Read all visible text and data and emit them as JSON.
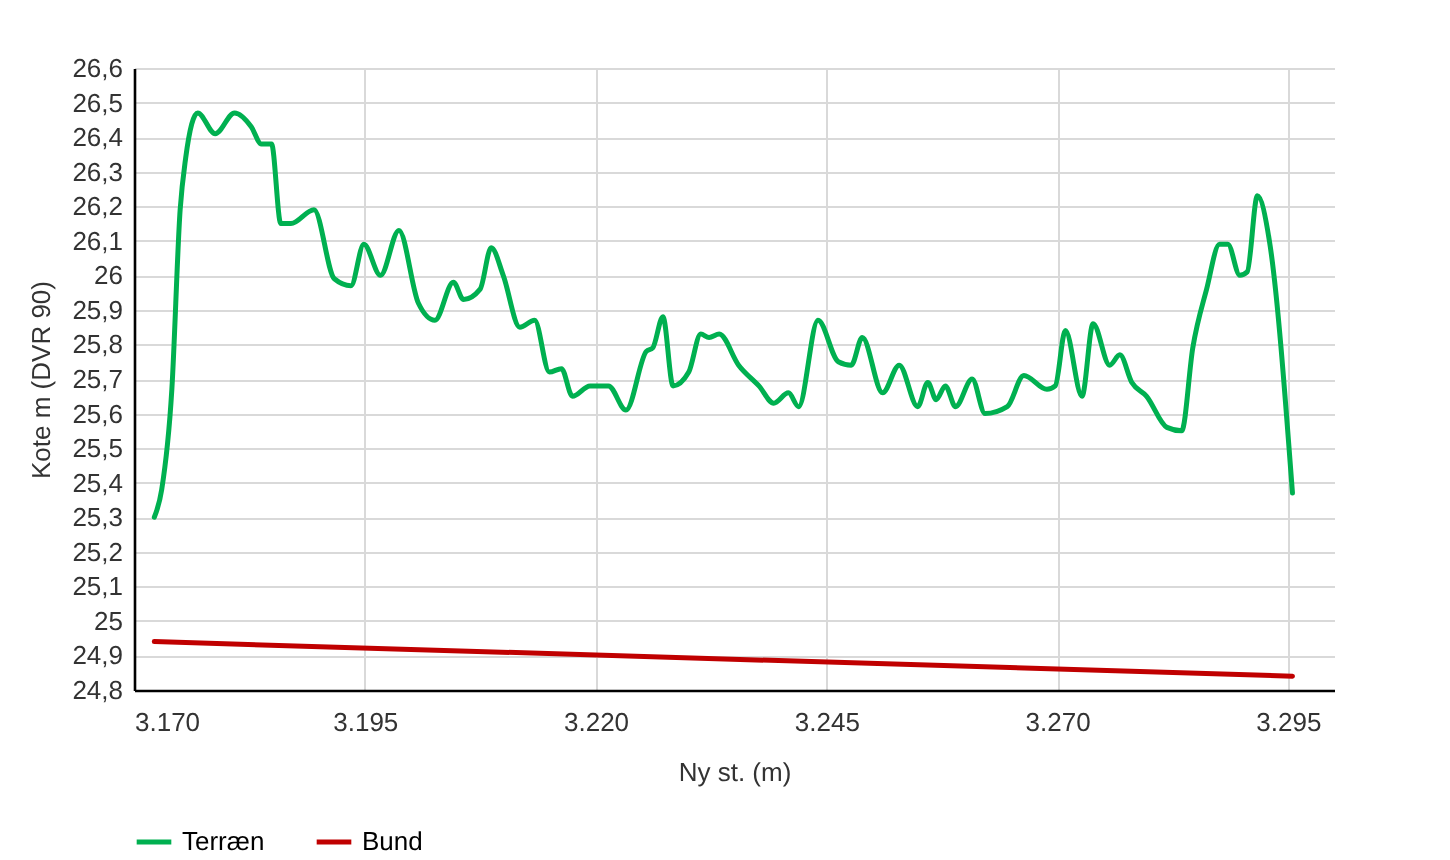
{
  "chart_data": {
    "type": "line",
    "xlabel": "Ny st. (m)",
    "ylabel": "Kote m (DVR 90)",
    "xlim": [
      3170,
      3300
    ],
    "xticks": [
      {
        "value": 3170,
        "label": "3.170"
      },
      {
        "value": 3195,
        "label": "3.195"
      },
      {
        "value": 3220,
        "label": "3.220"
      },
      {
        "value": 3245,
        "label": "3.245"
      },
      {
        "value": 3270,
        "label": "3.270"
      },
      {
        "value": 3295,
        "label": "3.295"
      }
    ],
    "ylim": [
      24.8,
      26.6
    ],
    "yticks": [
      {
        "value": 24.8,
        "label": "24,8"
      },
      {
        "value": 24.9,
        "label": "24,9"
      },
      {
        "value": 25,
        "label": "25"
      },
      {
        "value": 25.1,
        "label": "25,1"
      },
      {
        "value": 25.2,
        "label": "25,2"
      },
      {
        "value": 25.3,
        "label": "25,3"
      },
      {
        "value": 25.4,
        "label": "25,4"
      },
      {
        "value": 25.5,
        "label": "25,5"
      },
      {
        "value": 25.6,
        "label": "25,6"
      },
      {
        "value": 25.7,
        "label": "25,7"
      },
      {
        "value": 25.8,
        "label": "25,8"
      },
      {
        "value": 25.9,
        "label": "25,9"
      },
      {
        "value": 26,
        "label": "26"
      },
      {
        "value": 26.1,
        "label": "26,1"
      },
      {
        "value": 26.2,
        "label": "26,2"
      },
      {
        "value": 26.3,
        "label": "26,3"
      },
      {
        "value": 26.4,
        "label": "26,4"
      },
      {
        "value": 26.5,
        "label": "26,5"
      },
      {
        "value": 26.6,
        "label": "26,6"
      }
    ],
    "grid": true,
    "legend": "bottom",
    "series": [
      {
        "name": "Terræn",
        "color": "#00b050",
        "x": [
          3172.2,
          3173,
          3174.1,
          3175,
          3175.6,
          3176.9,
          3178.8,
          3180.9,
          3182.7,
          3183.8,
          3184.9,
          3185.9,
          3187,
          3189.5,
          3191.7,
          3193.5,
          3194.9,
          3196.7,
          3198.7,
          3200.8,
          3202.6,
          3204.6,
          3205.7,
          3207.5,
          3208.7,
          3210,
          3211.8,
          3213.4,
          3215,
          3216.3,
          3217.5,
          3219.4,
          3220.4,
          3221.4,
          3223.3,
          3225.5,
          3226.2,
          3227.3,
          3228.4,
          3230.1,
          3231.4,
          3232.3,
          3233.4,
          3235.5,
          3237.7,
          3239.3,
          3240.9,
          3242,
          3244.1,
          3246.3,
          3247.7,
          3248.9,
          3251.1,
          3252.9,
          3254.9,
          3256,
          3256.9,
          3257.9,
          3259,
          3260.8,
          3262.2,
          3264.6,
          3266.4,
          3268.9,
          3269.8,
          3270.9,
          3272.7,
          3273.9,
          3275.7,
          3276.8,
          3278.1,
          3279.7,
          3281.9,
          3283.5,
          3284.7,
          3286.2,
          3287.6,
          3288.5,
          3289.8,
          3290.6,
          3291.7,
          3293,
          3295.5
        ],
        "values": [
          25.3,
          25.38,
          25.67,
          26.19,
          26.34,
          26.47,
          26.41,
          26.47,
          26.43,
          26.38,
          26.38,
          26.15,
          26.15,
          26.19,
          25.99,
          25.97,
          26.09,
          26,
          26.13,
          25.92,
          25.87,
          25.98,
          25.93,
          25.96,
          26.08,
          26,
          25.85,
          25.87,
          25.72,
          25.73,
          25.65,
          25.68,
          25.68,
          25.68,
          25.61,
          25.78,
          25.79,
          25.88,
          25.68,
          25.72,
          25.83,
          25.82,
          25.83,
          25.74,
          25.68,
          25.63,
          25.66,
          25.62,
          25.87,
          25.75,
          25.74,
          25.82,
          25.66,
          25.74,
          25.62,
          25.69,
          25.64,
          25.68,
          25.62,
          25.7,
          25.6,
          25.62,
          25.71,
          25.67,
          25.68,
          25.84,
          25.65,
          25.86,
          25.74,
          25.77,
          25.69,
          25.65,
          25.56,
          25.55,
          25.79,
          25.96,
          26.09,
          26.09,
          26,
          26.01,
          26.23,
          26.1,
          25.37
        ]
      },
      {
        "name": "Bund",
        "color": "#c00000",
        "x": [
          3172.2,
          3295.5
        ],
        "values": [
          24.94,
          24.84
        ]
      }
    ]
  }
}
